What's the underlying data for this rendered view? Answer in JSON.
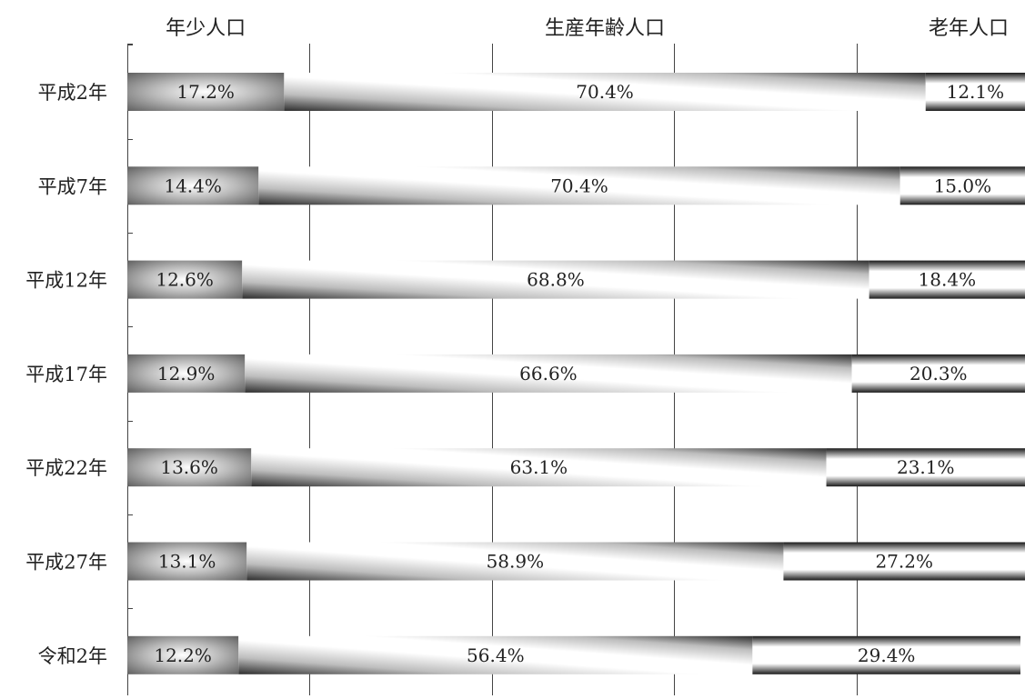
{
  "chart_data": {
    "type": "bar",
    "orientation": "horizontal",
    "stacked": "100%",
    "categories": [
      "平成2年",
      "平成7年",
      "平成12年",
      "平成17年",
      "平成22年",
      "平成27年",
      "令和2年"
    ],
    "series": [
      {
        "name": "年少人口",
        "values": [
          17.2,
          14.4,
          12.6,
          12.9,
          13.6,
          13.1,
          12.2
        ],
        "labels": [
          "17.2%",
          "14.4%",
          "12.6%",
          "12.9%",
          "13.6%",
          "13.1%",
          "12.2%"
        ]
      },
      {
        "name": "生産年齢人口",
        "values": [
          70.4,
          70.4,
          68.8,
          66.6,
          63.1,
          58.9,
          56.4
        ],
        "labels": [
          "70.4%",
          "70.4%",
          "68.8%",
          "66.6%",
          "63.1%",
          "58.9%",
          "56.4%"
        ]
      },
      {
        "name": "老年人口",
        "values": [
          12.1,
          15.0,
          18.4,
          20.3,
          23.1,
          27.2,
          29.4
        ],
        "labels": [
          "12.1%",
          "15.0%",
          "18.4%",
          "20.3%",
          "23.1%",
          "27.2%",
          "29.4%"
        ]
      }
    ],
    "xlim": [
      0,
      100
    ],
    "grid": true,
    "legend": "top"
  }
}
